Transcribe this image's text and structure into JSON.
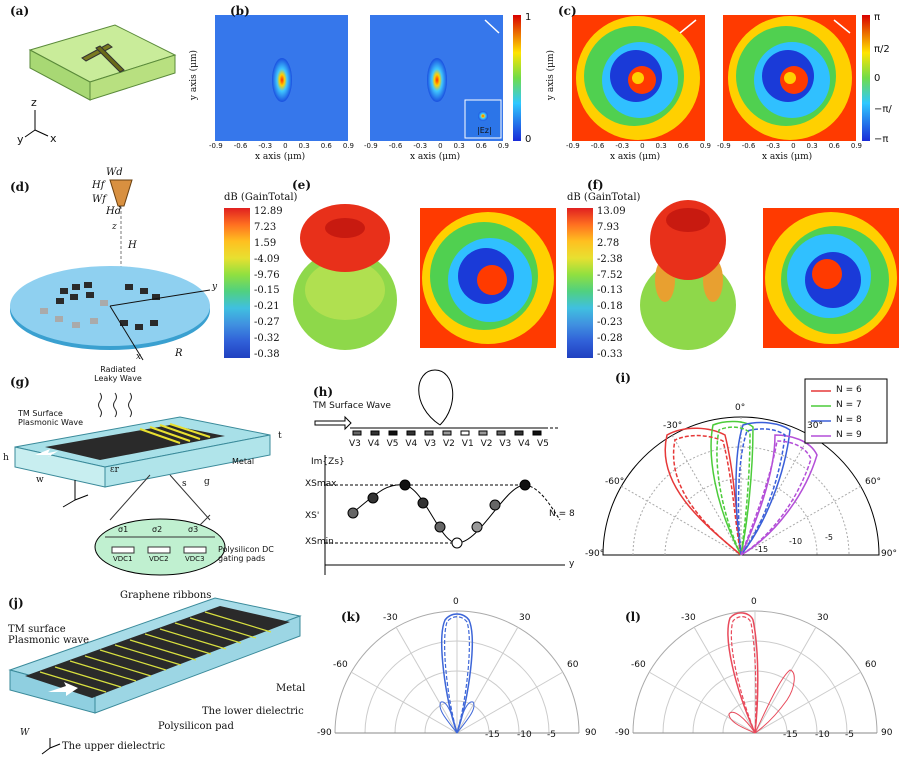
{
  "panels": {
    "a": {
      "label": "(a)",
      "axes": [
        "z",
        "y",
        "x"
      ]
    },
    "b": {
      "label": "(b)",
      "xlabel": "x axis (μm)",
      "ylabel": "y axis (μm)",
      "ticks": [
        "-0.9",
        "-0.6",
        "-0.3",
        "0",
        "0.3",
        "0.6",
        "0.9"
      ],
      "colorbar": [
        "1",
        "0"
      ],
      "inset_label": "|Ez|"
    },
    "c": {
      "label": "(c)",
      "xlabel": "x axis (μm)",
      "ylabel": "y axis (μm)",
      "ticks": [
        "-0.9",
        "-0.6",
        "-0.3",
        "0",
        "0.3",
        "0.6",
        "0.9"
      ],
      "colorbar": [
        "π",
        "π/2",
        "0",
        "−π/",
        "−π"
      ]
    },
    "d": {
      "label": "(d)",
      "dims": [
        "Wd",
        "Hf",
        "Wf",
        "Hd",
        "H",
        "R"
      ],
      "axes": [
        "z",
        "y",
        "x"
      ]
    },
    "e": {
      "label": "(e)",
      "legend_title": "dB (GainTotal)",
      "legend": [
        "12.89",
        "7.23",
        "1.59",
        "-4.09",
        "-9.76",
        "-0.15",
        "-0.21",
        "-0.27",
        "-0.32",
        "-0.38"
      ]
    },
    "f": {
      "label": "(f)",
      "legend_title": "dB (GainTotal)",
      "legend": [
        "13.09",
        "7.93",
        "2.78",
        "-2.38",
        "-7.52",
        "-0.13",
        "-0.18",
        "-0.23",
        "-0.28",
        "-0.33"
      ]
    },
    "g": {
      "label": "(g)",
      "radiated": "Radiated Leaky Wave",
      "tm": "TM Surface Plasmonic Wave",
      "metal": "Metal",
      "dims": [
        "h",
        "t",
        "w",
        "s",
        "g",
        "εr"
      ],
      "sigmas": [
        "σ1",
        "σ2",
        "σ3"
      ],
      "vdc": [
        "VDC1",
        "VDC2",
        "VDC3"
      ],
      "gating": "Polysilicon DC gating pads"
    },
    "h": {
      "label": "(h)",
      "tm": "TM Surface Wave",
      "voltages": [
        "V3",
        "V4",
        "V5",
        "V4",
        "V3",
        "V2",
        "V1",
        "V2",
        "V3",
        "V4",
        "V5"
      ],
      "ylabel": "Im{Zs}",
      "xsmax": "XSmax",
      "xs": "XS'",
      "xsmin": "XSmin",
      "n": "N = 8",
      "yaxis": "y"
    },
    "i": {
      "label": "(i)",
      "angles": [
        "0°",
        "30°",
        "60°",
        "90°",
        "-30°",
        "-60°",
        "-90°"
      ],
      "rings": [
        "-15",
        "-10",
        "-5"
      ],
      "legend": [
        {
          "name": "N = 6",
          "color": "#e63838"
        },
        {
          "name": "N = 7",
          "color": "#4ccc3a"
        },
        {
          "name": "N = 8",
          "color": "#3a5fd9"
        },
        {
          "name": "N = 9",
          "color": "#b44fd8"
        }
      ]
    },
    "j": {
      "label": "(j)",
      "ribbons": "Graphene ribbons",
      "tm": "TM surface Plasmonic wave",
      "metal": "Metal",
      "lower": "The lower dielectric",
      "pad": "Polysilicon pad",
      "upper": "The upper dielectric",
      "w": "W"
    },
    "k": {
      "label": "(k)",
      "angles": [
        "0",
        "30",
        "60",
        "90",
        "-30",
        "-60",
        "-90"
      ],
      "rings": [
        "-15",
        "-10",
        "-5"
      ],
      "color": "#3d66d8"
    },
    "l": {
      "label": "(l)",
      "angles": [
        "0",
        "30",
        "60",
        "90",
        "-30",
        "-60",
        "-90"
      ],
      "rings": [
        "-15",
        "-10",
        "-5"
      ],
      "color": "#e8495a"
    }
  }
}
